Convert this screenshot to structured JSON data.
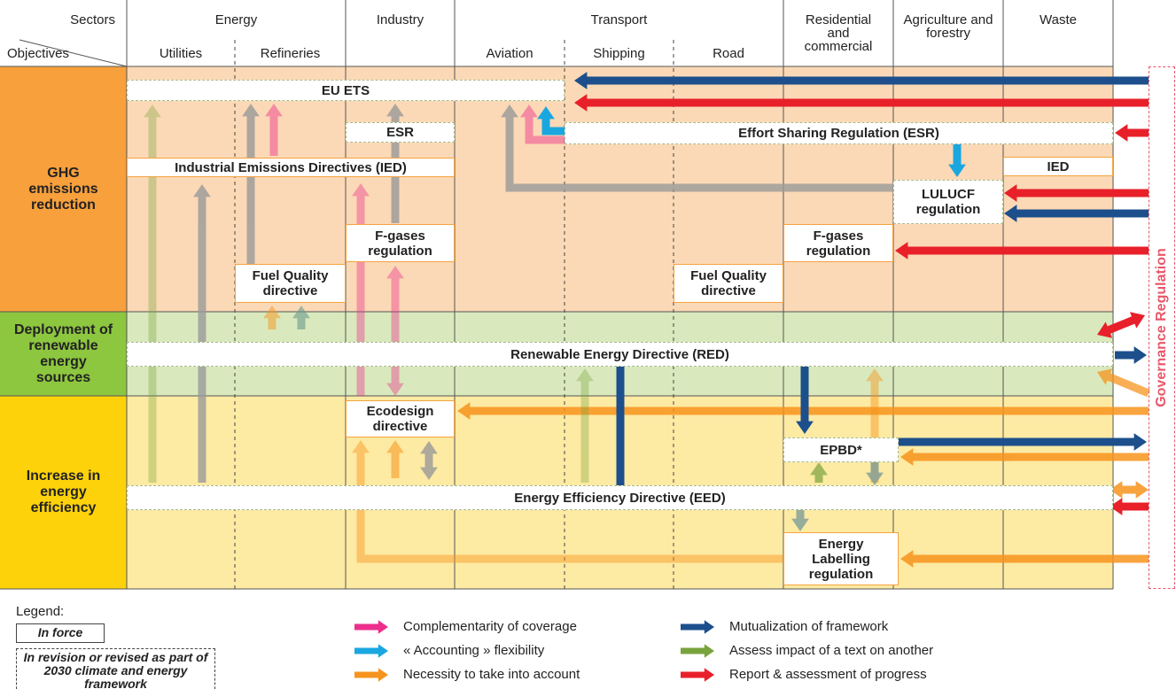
{
  "header": {
    "sectors_label": "Sectors",
    "objectives_label": "Objectives",
    "sectors": [
      "Energy",
      "Industry",
      "Transport",
      "Residential and commercial",
      "Agriculture and forestry",
      "Waste"
    ],
    "subsectors": [
      "Utilities",
      "Refineries",
      "Aviation",
      "Shipping",
      "Road"
    ]
  },
  "objectives": [
    {
      "label": "GHG emissions reduction",
      "color": "#f7a03c",
      "background": "#fbd9b6"
    },
    {
      "label": "Deployment of renewable energy sources",
      "color": "#8dc63f",
      "background": "#d9e9bd"
    },
    {
      "label": "Increase in energy efficiency",
      "color": "#fdd20a",
      "background": "#fdeaa3"
    }
  ],
  "boxes": [
    {
      "label": "EU ETS",
      "dashed": true
    },
    {
      "label": "ESR",
      "dashed": true
    },
    {
      "label": "Effort Sharing Regulation (ESR)",
      "dashed": true
    },
    {
      "label": "Industrial Emissions Directives (IED)",
      "dashed": false
    },
    {
      "label": "IED",
      "dashed": false
    },
    {
      "label": "LULUCF regulation",
      "dashed": true
    },
    {
      "label": "F-gases regulation",
      "dashed": false
    },
    {
      "label": "F-gases regulation",
      "dashed": false
    },
    {
      "label": "Fuel Quality directive",
      "dashed": false
    },
    {
      "label": "Fuel Quality directive",
      "dashed": false
    },
    {
      "label": "Renewable Energy Directive (RED)",
      "dashed": true
    },
    {
      "label": "Ecodesign directive",
      "dashed": false
    },
    {
      "label": "EPBD*",
      "dashed": true
    },
    {
      "label": "Energy Efficiency Directive (EED)",
      "dashed": true
    },
    {
      "label": "Energy Labelling regulation",
      "dashed": false
    }
  ],
  "governance": "Governance Regulation",
  "legend": {
    "title": "Legend:",
    "status": [
      {
        "label": "In force",
        "dashed": false
      },
      {
        "label": "In revision or revised as part of 2030 climate and energy framework",
        "dashed": true
      }
    ],
    "arrows": [
      {
        "label": "Complementarity of coverage",
        "color": "#ec2f8c"
      },
      {
        "label": "« Accounting » flexibility",
        "color": "#1aa7e0"
      },
      {
        "label": "Necessity to take into account",
        "color": "#f7941d"
      },
      {
        "label": "Mutualization of framework",
        "color": "#1c4f8c"
      },
      {
        "label": "Assess impact of a text on another",
        "color": "#79a33d"
      },
      {
        "label": "Report & assessment of progress",
        "color": "#e8202a"
      }
    ]
  }
}
